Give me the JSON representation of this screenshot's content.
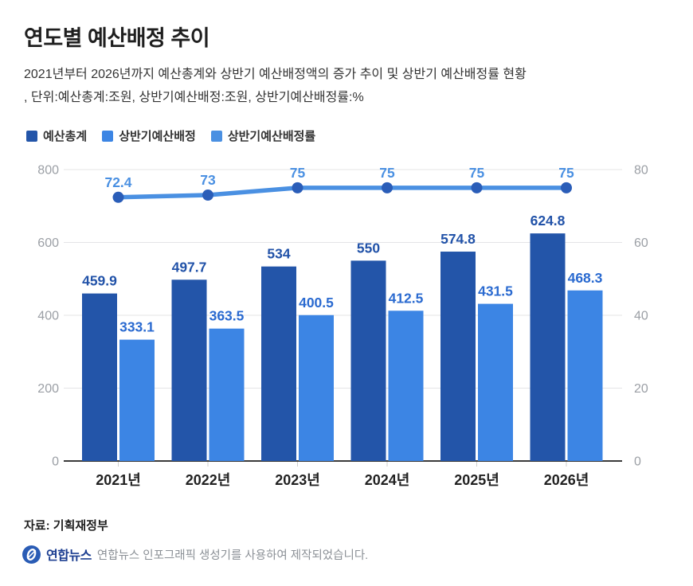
{
  "header": {
    "title": "연도별 예산배정 추이",
    "subtitle_line1": "2021년부터 2026년까지 예산총계와 상반기 예산배정액의 증가 추이 및 상반기 예산배정률 현황",
    "subtitle_line2": ", 단위:예산총계:조원, 상반기예산배정:조원, 상반기예산배정률:%"
  },
  "legend": [
    {
      "label": "예산총계",
      "color": "#2355a9",
      "type": "bar"
    },
    {
      "label": "상반기예산배정",
      "color": "#3c85e4",
      "type": "bar"
    },
    {
      "label": "상반기예산배정률",
      "color": "#4a90e2",
      "type": "line"
    }
  ],
  "chart_data": {
    "type": "bar",
    "subtype": "grouped-bars-with-line",
    "categories": [
      "2021년",
      "2022년",
      "2023년",
      "2024년",
      "2025년",
      "2026년"
    ],
    "series": [
      {
        "name": "예산총계",
        "type": "bar",
        "axis": "left",
        "color": "#2355a9",
        "label_color": "#2152a8",
        "values": [
          459.9,
          497.7,
          534,
          550,
          574.8,
          624.8
        ]
      },
      {
        "name": "상반기예산배정",
        "type": "bar",
        "axis": "left",
        "color": "#3c85e4",
        "label_color": "#2a6ad0",
        "values": [
          333.1,
          363.5,
          400.5,
          412.5,
          431.5,
          468.3
        ]
      },
      {
        "name": "상반기예산배정률",
        "type": "line",
        "axis": "right",
        "color": "#4a90e2",
        "marker_color": "#2a5db8",
        "label_color": "#4a90e2",
        "values": [
          72.4,
          73,
          75,
          75,
          75,
          75
        ]
      }
    ],
    "left_axis": {
      "min": 0,
      "max": 800,
      "ticks": [
        0,
        200,
        400,
        600,
        800
      ],
      "unit": "조원"
    },
    "right_axis": {
      "min": 0,
      "max": 80,
      "ticks": [
        0,
        20,
        40,
        60,
        80
      ],
      "unit": "%"
    },
    "grid": true,
    "legend_position": "top-left",
    "title": "연도별 예산배정 추이",
    "xlabel": "",
    "ylabel": ""
  },
  "colors": {
    "grid_line": "#e4e4e6",
    "axis_line": "#3a3a3a",
    "axis_tick": "#cfcfcf",
    "axis_label": "#9b9fa5",
    "x_label": "#222222"
  },
  "source": "자료: 기획재정부",
  "footer": {
    "logo_icon": "yonhap-logo",
    "brand": "연합뉴스",
    "credit": "연합뉴스 인포그래픽 생성기를 사용하여 제작되었습니다."
  }
}
